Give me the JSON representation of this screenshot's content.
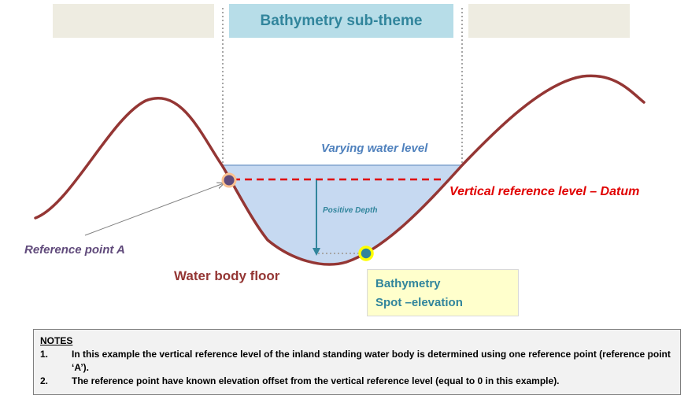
{
  "header": {
    "title": "Bathymetry sub-theme"
  },
  "labels": {
    "varying_water_level": "Varying water level",
    "datum": "Vertical reference level – Datum",
    "positive_depth": "Positive Depth",
    "reference_point": "Reference point A",
    "water_body_floor": "Water body floor",
    "spot_line1": "Bathymetry",
    "spot_line2": "Spot –elevation"
  },
  "notes": {
    "heading": "NOTES",
    "items": [
      {
        "num": "1.",
        "text": "In this example the vertical reference level of the inland standing water body is determined using one reference point (reference point ‘A’)."
      },
      {
        "num": "2.",
        "text": "The reference point have known elevation offset from the vertical reference level (equal to 0 in this example)."
      }
    ]
  },
  "colors": {
    "terrain": "#943634",
    "water_fill": "#c6d9f1",
    "water_surface": "#95b3d7",
    "datum": "#e00000",
    "depth_arrow": "#31859c",
    "reference_point": "#604a7b",
    "spot_point": "#31859c",
    "spot_ring": "#ffff00"
  }
}
